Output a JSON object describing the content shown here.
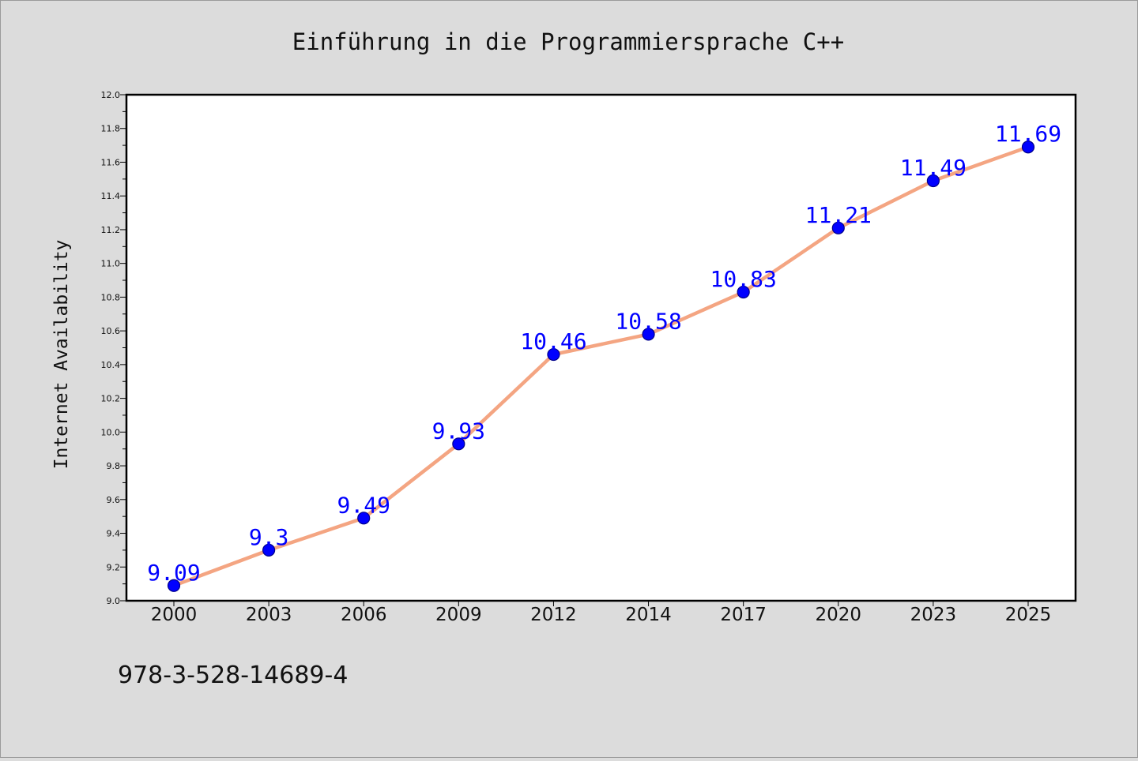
{
  "chart_data": {
    "type": "line",
    "title": "Einführung in die Programmiersprache C++",
    "xlabel": "",
    "ylabel": "Internet Availability",
    "ylim": [
      9.0,
      12.0
    ],
    "y_major_step": 0.2,
    "y_minor_step": 0.1,
    "grid": false,
    "categories": [
      "2000",
      "2003",
      "2006",
      "2009",
      "2012",
      "2014",
      "2017",
      "2020",
      "2023",
      "2025"
    ],
    "y_tick_labels": [
      "9.0",
      "9.2",
      "9.4",
      "9.6",
      "9.8",
      "10.0",
      "10.2",
      "10.4",
      "10.6",
      "10.8",
      "11.0",
      "11.2",
      "11.4",
      "11.6",
      "11.8",
      "12.0"
    ],
    "series": [
      {
        "values": [
          9.09,
          9.3,
          9.49,
          9.93,
          10.46,
          10.58,
          10.83,
          11.21,
          11.49,
          11.69
        ],
        "data_labels": [
          "9.09",
          "9.3",
          "9.49",
          "9.93",
          "10.46",
          "10.58",
          "10.83",
          "11.21",
          "11.49",
          "11.69"
        ]
      }
    ],
    "footnote": "978-3-528-14689-4",
    "colors": {
      "line": "#f4a582",
      "marker": "#0000ff",
      "marker_edge": "#00008b",
      "data_label": "#0000ff",
      "background": "#dcdcdc",
      "plot_background": "#ffffff",
      "axes": "#000000"
    }
  }
}
